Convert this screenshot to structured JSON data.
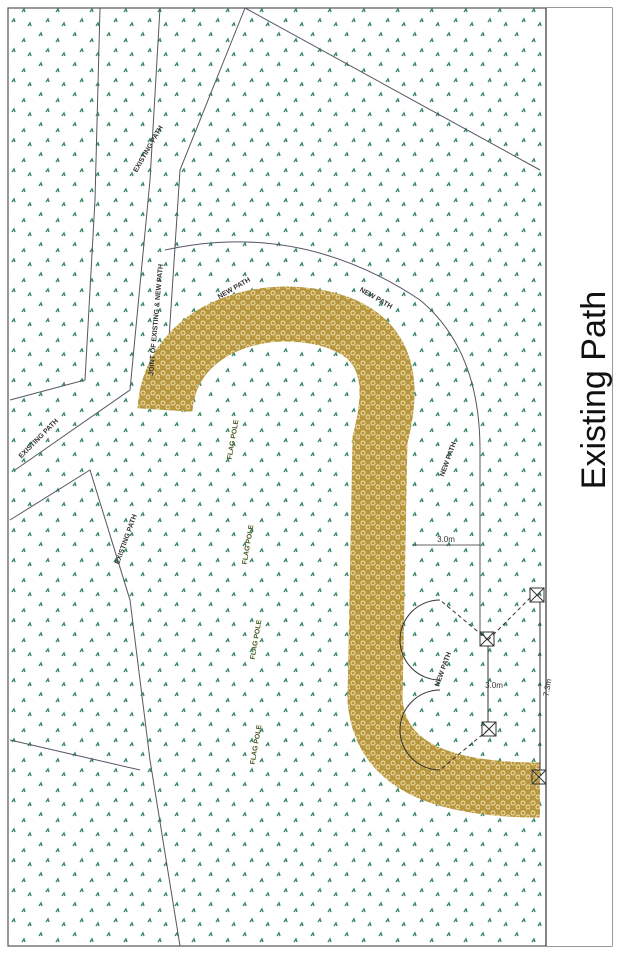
{
  "title": "Existing Path",
  "annotations": [
    "EXISTING PATH",
    "EXISTING PATH",
    "EXISTING PATH",
    "JOINT OF EXISTING & NEW PATH",
    "NEW PATH",
    "NEW PATH",
    "NEW PATH",
    "NEW PATH"
  ],
  "flag_poles": [
    "FLAG POLE",
    "FLAG POLE",
    "FLAG POLE",
    "FLAG POLE"
  ],
  "dimensions": [
    "3.0m",
    "3.0m",
    "7.3m"
  ]
}
